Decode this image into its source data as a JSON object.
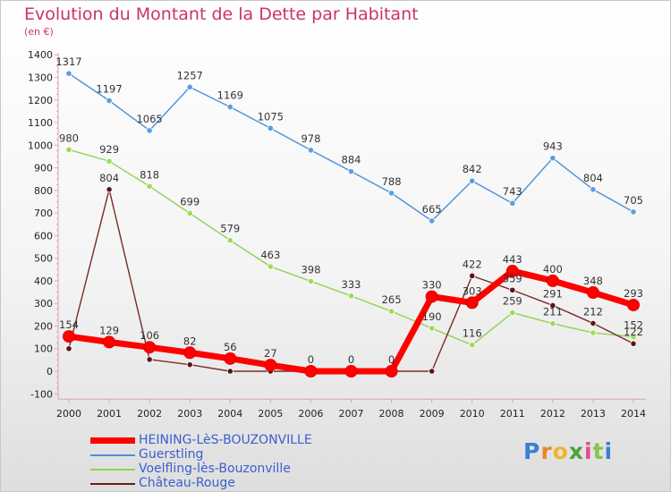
{
  "title": "Evolution du Montant de la Dette par Habitant",
  "subtitle": "(en €)",
  "logo_text": "Proxiti",
  "chart_data": {
    "type": "line",
    "title": "Evolution du Montant de la Dette par Habitant",
    "subtitle": "(en €)",
    "x": [
      "2000",
      "2001",
      "2002",
      "2003",
      "2004",
      "2005",
      "2006",
      "2007",
      "2008",
      "2009",
      "2010",
      "2011",
      "2012",
      "2013",
      "2014"
    ],
    "yticks": [
      "-100",
      "0",
      "100",
      "200",
      "300",
      "400",
      "500",
      "600",
      "700",
      "800",
      "900",
      "1000",
      "1100",
      "1200",
      "1300",
      "1400"
    ],
    "ylim": [
      -100,
      1400
    ],
    "grid": false,
    "legend_position": "bottom",
    "series": [
      {
        "name": "HEINING-LèS-BOUZONVILLE",
        "color": "#ff0000",
        "values": [
          154,
          129,
          106,
          82,
          56,
          27,
          0,
          0,
          0,
          330,
          303,
          443,
          400,
          348,
          293
        ],
        "labels": [
          "154",
          "129",
          "106",
          "82",
          "56",
          "27",
          "0",
          "0",
          "0",
          "330",
          "303",
          "443",
          "400",
          "348",
          "293"
        ]
      },
      {
        "name": "Guerstling",
        "color": "#4a90d9",
        "values": [
          1317,
          1197,
          1065,
          1257,
          1169,
          1075,
          978,
          884,
          788,
          665,
          842,
          743,
          943,
          804,
          705
        ],
        "labels": [
          "1317",
          "1197",
          "1065",
          "1257",
          "1169",
          "1075",
          "978",
          "884",
          "788",
          "665",
          "842",
          "743",
          "943",
          "804",
          "705"
        ]
      },
      {
        "name": "Voelfling-lès-Bouzonville",
        "color": "#8ed34f",
        "values": [
          980,
          929,
          818,
          699,
          579,
          463,
          398,
          333,
          265,
          190,
          116,
          259,
          211,
          170,
          152
        ],
        "labels": [
          "980",
          "929",
          "818",
          "699",
          "579",
          "463",
          "398",
          "333",
          "265",
          "190",
          "116",
          "259",
          "211",
          "",
          "152"
        ]
      },
      {
        "name": "Château-Rouge",
        "color": "#6b1e1e",
        "values": [
          100,
          804,
          52,
          29,
          0,
          0,
          0,
          0,
          0,
          0,
          422,
          359,
          291,
          212,
          122
        ],
        "labels": [
          "",
          "804",
          "",
          "",
          "",
          "",
          "",
          "",
          "",
          "",
          "422",
          "359",
          "291",
          "212",
          "122"
        ]
      }
    ]
  }
}
